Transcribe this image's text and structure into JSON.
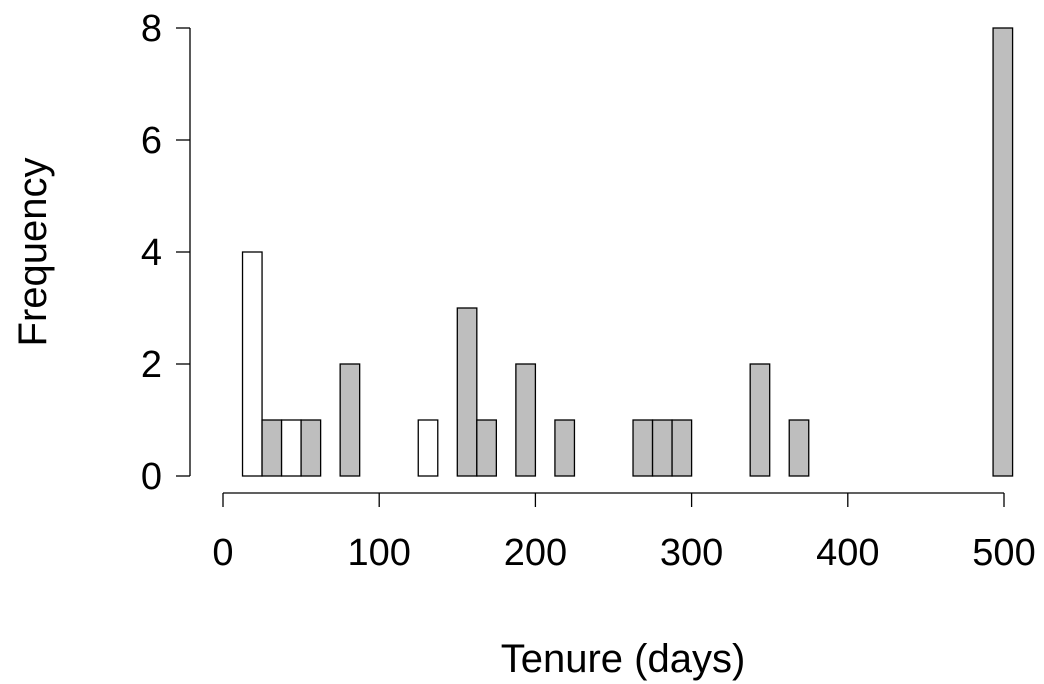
{
  "chart_data": {
    "type": "bar",
    "title": "",
    "xlabel": "Tenure (days)",
    "ylabel": "Frequency",
    "xlim": [
      0,
      500
    ],
    "ylim": [
      0,
      8
    ],
    "xticks": [
      0,
      100,
      200,
      300,
      400,
      500
    ],
    "yticks": [
      0,
      2,
      4,
      6,
      8
    ],
    "xtick_labels": [
      "0",
      "100",
      "200",
      "300",
      "400",
      "500"
    ],
    "ytick_labels": [
      "0",
      "2",
      "4",
      "6",
      "8"
    ],
    "grid": false,
    "bin_width": 12.5,
    "colors": {
      "white_bar": "#ffffff",
      "grey_bar": "#bebebe",
      "outline": "#000000"
    },
    "bars": [
      {
        "x_start": 12.5,
        "x_end": 25,
        "value": 4,
        "fill": "white"
      },
      {
        "x_start": 25,
        "x_end": 37.5,
        "value": 1,
        "fill": "grey"
      },
      {
        "x_start": 37.5,
        "x_end": 50,
        "value": 1,
        "fill": "white"
      },
      {
        "x_start": 50,
        "x_end": 62.5,
        "value": 1,
        "fill": "grey"
      },
      {
        "x_start": 75,
        "x_end": 87.5,
        "value": 2,
        "fill": "grey"
      },
      {
        "x_start": 125,
        "x_end": 137.5,
        "value": 1,
        "fill": "white"
      },
      {
        "x_start": 150,
        "x_end": 162.5,
        "value": 3,
        "fill": "grey"
      },
      {
        "x_start": 162.5,
        "x_end": 175,
        "value": 1,
        "fill": "grey"
      },
      {
        "x_start": 187.5,
        "x_end": 200,
        "value": 2,
        "fill": "grey"
      },
      {
        "x_start": 212.5,
        "x_end": 225,
        "value": 1,
        "fill": "grey"
      },
      {
        "x_start": 262.5,
        "x_end": 275,
        "value": 1,
        "fill": "grey"
      },
      {
        "x_start": 275,
        "x_end": 287.5,
        "value": 1,
        "fill": "grey"
      },
      {
        "x_start": 287.5,
        "x_end": 300,
        "value": 1,
        "fill": "grey"
      },
      {
        "x_start": 337.5,
        "x_end": 350,
        "value": 2,
        "fill": "grey"
      },
      {
        "x_start": 362.5,
        "x_end": 375,
        "value": 1,
        "fill": "grey"
      },
      {
        "x_start": 493,
        "x_end": 505.5,
        "value": 8,
        "fill": "grey"
      }
    ]
  }
}
